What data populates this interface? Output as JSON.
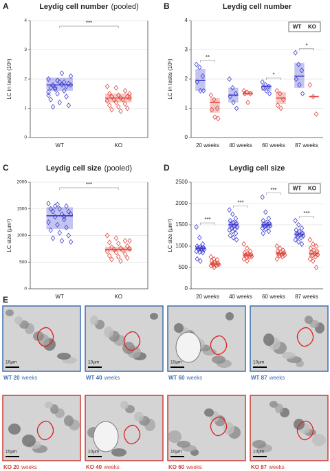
{
  "chart_data": [
    {
      "type": "box",
      "panel": "A",
      "title": "Leydig cell number",
      "subtitle": "(pooled)",
      "ylabel": "LC in testis (10⁶)",
      "ylim": [
        0,
        4
      ],
      "yticks": [
        0,
        1,
        2,
        3,
        4
      ],
      "grid": true,
      "categories": [
        "WT",
        "KO"
      ],
      "colors": [
        "#3a3ad0",
        "#e0453a"
      ],
      "points": [
        [
          2.0,
          1.95,
          1.75,
          1.7,
          1.9,
          1.85,
          1.8,
          1.8,
          1.8,
          1.7,
          1.6,
          1.55,
          1.5,
          1.4,
          1.3,
          1.2,
          1.1,
          1.05,
          2.2,
          2.1,
          1.65,
          1.9,
          1.45
        ],
        [
          1.75,
          1.7,
          1.6,
          1.5,
          1.45,
          1.4,
          1.4,
          1.35,
          1.35,
          1.3,
          1.3,
          1.25,
          1.2,
          1.15,
          1.1,
          1.05,
          1.0,
          0.95,
          0.9,
          1.5
        ]
      ],
      "boxes": [
        {
          "q1": 1.6,
          "median": 1.8,
          "q3": 2.05
        },
        {
          "q1": 1.2,
          "median": 1.35,
          "q3": 1.5
        }
      ],
      "annotation": "***"
    },
    {
      "type": "box",
      "panel": "B",
      "title": "Leydig cell number",
      "ylabel": "LC in testis (10⁶)",
      "ylim": [
        0,
        4
      ],
      "yticks": [
        0,
        1,
        2,
        3,
        4
      ],
      "grid": true,
      "legend": "upper right",
      "categories": [
        "20 weeks",
        "40 weeks",
        "60 weeks",
        "87 weeks"
      ],
      "series": [
        {
          "name": "WT",
          "color": "#3a3ad0",
          "points": [
            [
              2.5,
              2.4,
              2.1,
              1.9,
              1.6,
              1.6
            ],
            [
              2.0,
              1.7,
              1.5,
              1.4,
              1.2,
              1.0
            ],
            [
              1.9,
              1.8,
              1.75,
              1.7,
              1.6,
              1.5
            ],
            [
              2.9,
              2.5,
              2.3,
              2.0,
              1.8,
              1.5
            ]
          ],
          "boxes": [
            {
              "q1": 1.6,
              "median": 1.95,
              "q3": 2.35
            },
            {
              "q1": 1.2,
              "median": 1.45,
              "q3": 1.7
            },
            {
              "q1": 1.6,
              "median": 1.75,
              "q3": 1.8
            },
            {
              "q1": 1.7,
              "median": 2.1,
              "q3": 2.55
            }
          ]
        },
        {
          "name": "KO",
          "color": "#e0453a",
          "points": [
            [
              1.45,
              1.3,
              1.0,
              0.95,
              0.7,
              0.65
            ],
            [
              1.6,
              1.55,
              1.5,
              1.5,
              1.2
            ],
            [
              1.6,
              1.5,
              1.3,
              1.1,
              1.0
            ],
            [
              1.8,
              1.4,
              0.8
            ]
          ],
          "boxes": [
            {
              "q1": 0.85,
              "median": 1.2,
              "q3": 1.35
            },
            {
              "q1": 1.45,
              "median": 1.5,
              "q3": 1.6
            },
            {
              "q1": 1.15,
              "median": 1.35,
              "q3": 1.55
            },
            {
              "q1": 1.4,
              "median": 1.4,
              "q3": 1.4
            }
          ]
        }
      ],
      "annotations": [
        "**",
        null,
        "*",
        "*"
      ]
    },
    {
      "type": "box",
      "panel": "C",
      "title": "Leydig cell size",
      "subtitle": "(pooled)",
      "ylabel": "LC size (µm³)",
      "ylim": [
        0,
        2000
      ],
      "yticks": [
        0,
        500,
        1000,
        1500,
        2000
      ],
      "grid": true,
      "categories": [
        "WT",
        "KO"
      ],
      "colors": [
        "#3a3ad0",
        "#e0453a"
      ],
      "points": [
        [
          1600,
          1580,
          1550,
          1500,
          1500,
          1450,
          1450,
          1400,
          1400,
          1350,
          1300,
          1250,
          1200,
          1150,
          1100,
          1050,
          1000,
          950,
          900,
          880,
          1550,
          1350
        ],
        [
          1000,
          950,
          900,
          870,
          850,
          800,
          780,
          760,
          750,
          740,
          720,
          700,
          680,
          650,
          620,
          600,
          580,
          550,
          520,
          900
        ]
      ],
      "boxes": [
        {
          "q1": 1120,
          "median": 1370,
          "q3": 1530
        },
        {
          "q1": 700,
          "median": 740,
          "q3": 790
        }
      ],
      "annotation": "***"
    },
    {
      "type": "box",
      "panel": "D",
      "title": "Leydig cell size",
      "ylabel": "LC size (µm³)",
      "ylim": [
        0,
        2500
      ],
      "yticks": [
        0,
        500,
        1000,
        1500,
        2000,
        2500
      ],
      "grid": true,
      "legend": "upper right",
      "categories": [
        "20 weeks",
        "40 weeks",
        "60 weeks",
        "87 weeks"
      ],
      "series": [
        {
          "name": "WT",
          "color": "#3a3ad0",
          "points": [
            [
              1450,
              1200,
              1050,
              1000,
              980,
              960,
              950,
              940,
              930,
              920,
              900,
              880,
              860,
              850,
              700,
              650
            ],
            [
              1850,
              1750,
              1650,
              1600,
              1550,
              1520,
              1500,
              1480,
              1450,
              1420,
              1400,
              1380,
              1350,
              1300,
              1250,
              1200,
              1150
            ],
            [
              2150,
              1800,
              1650,
              1600,
              1550,
              1530,
              1510,
              1500,
              1480,
              1460,
              1440,
              1420,
              1400,
              1350,
              1300
            ],
            [
              1600,
              1500,
              1420,
              1380,
              1340,
              1300,
              1280,
              1260,
              1240,
              1220,
              1200,
              1150,
              1100,
              1050
            ]
          ],
          "boxes": [
            {
              "q1": 900,
              "median": 950,
              "q3": 1000
            },
            {
              "q1": 1400,
              "median": 1500,
              "q3": 1600
            },
            {
              "q1": 1420,
              "median": 1500,
              "q3": 1570
            },
            {
              "q1": 1200,
              "median": 1280,
              "q3": 1350
            }
          ]
        },
        {
          "name": "KO",
          "color": "#e0453a",
          "points": [
            [
              750,
              700,
              680,
              650,
              620,
              600,
              590,
              580,
              570,
              560,
              550,
              540,
              500
            ],
            [
              1050,
              950,
              880,
              850,
              820,
              800,
              790,
              780,
              760,
              750,
              740,
              700,
              650
            ],
            [
              1000,
              950,
              900,
              880,
              860,
              840,
              820,
              800,
              790,
              780,
              750,
              700
            ],
            [
              1150,
              1050,
              1000,
              950,
              900,
              880,
              850,
              820,
              800,
              780,
              750,
              700,
              650,
              500
            ]
          ],
          "boxes": [
            {
              "q1": 540,
              "median": 580,
              "q3": 620
            },
            {
              "q1": 740,
              "median": 790,
              "q3": 850
            },
            {
              "q1": 780,
              "median": 830,
              "q3": 880
            },
            {
              "q1": 750,
              "median": 820,
              "q3": 900
            }
          ]
        }
      ],
      "annotations": [
        "***",
        "***",
        "***",
        "***"
      ]
    }
  ],
  "micrographs": {
    "panel": "E",
    "scale_bar": "10µm",
    "unit": "weeks",
    "images": [
      {
        "label": "WT 20",
        "color": "#3d6fb0"
      },
      {
        "label": "WT 40",
        "color": "#3d6fb0"
      },
      {
        "label": "WT 60",
        "color": "#3d6fb0"
      },
      {
        "label": "WT 87",
        "color": "#3d6fb0"
      },
      {
        "label": "KO 20",
        "color": "#d23a32"
      },
      {
        "label": "KO 40",
        "color": "#d23a32"
      },
      {
        "label": "KO 60",
        "color": "#d23a32"
      },
      {
        "label": "KO 87",
        "color": "#d23a32"
      }
    ]
  }
}
